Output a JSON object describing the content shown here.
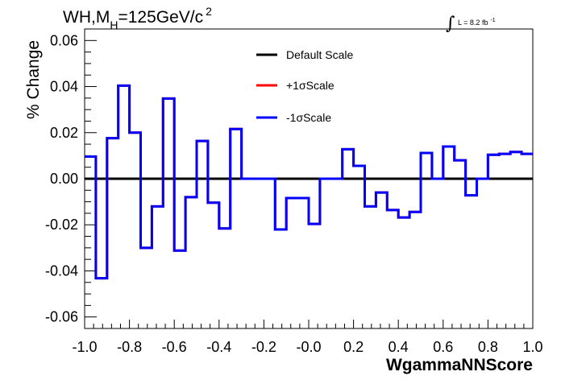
{
  "chart_data": {
    "type": "line",
    "title": {
      "prefix": "WH,M",
      "subscript": "H",
      "value": "=125GeV/c",
      "superscript": "2"
    },
    "luminosity": {
      "integral": "∫",
      "text": "L = 8.2 fb",
      "exponent": "-1"
    },
    "xlabel": "WgammaNNScore",
    "ylabel": "% Change",
    "xlim": [
      -1.0,
      1.0
    ],
    "ylim": [
      -0.065,
      0.065
    ],
    "x_ticks": [
      -1.0,
      -0.8,
      -0.6,
      -0.4,
      -0.2,
      0.0,
      0.2,
      0.4,
      0.6,
      0.8,
      1.0
    ],
    "x_tick_labels": [
      "-1.0",
      "-0.8",
      "-0.6",
      "-0.4",
      "-0.2",
      "-0.0",
      "0.2",
      "0.4",
      "0.6",
      "0.8",
      "1.0"
    ],
    "y_ticks": [
      -0.06,
      -0.04,
      -0.02,
      0.0,
      0.02,
      0.04,
      0.06
    ],
    "y_tick_labels": [
      "-0.06",
      "-0.04",
      "-0.02",
      "0.00",
      "0.02",
      "0.04",
      "0.06"
    ],
    "legend_position": "top-center",
    "grid": false,
    "bin_edges": [
      -1.0,
      -0.95,
      -0.9,
      -0.85,
      -0.8,
      -0.75,
      -0.7,
      -0.65,
      -0.6,
      -0.55,
      -0.5,
      -0.45,
      -0.4,
      -0.35,
      -0.3,
      -0.25,
      -0.2,
      -0.15,
      -0.1,
      -0.05,
      0.0,
      0.05,
      0.1,
      0.15,
      0.2,
      0.25,
      0.3,
      0.35,
      0.4,
      0.45,
      0.5,
      0.55,
      0.6,
      0.65,
      0.7,
      0.75,
      0.8,
      0.85,
      0.9,
      0.95,
      1.0
    ],
    "series": [
      {
        "name": "Default Scale",
        "color": "#000000",
        "values": [
          0,
          0,
          0,
          0,
          0,
          0,
          0,
          0,
          0,
          0,
          0,
          0,
          0,
          0,
          0,
          0,
          0,
          0,
          0,
          0,
          0,
          0,
          0,
          0,
          0,
          0,
          0,
          0,
          0,
          0,
          0,
          0,
          0,
          0,
          0,
          0,
          0,
          0,
          0,
          0
        ]
      },
      {
        "name": "+1σScale",
        "color": "#ff0000",
        "values": [
          0.0096,
          -0.0432,
          0.0176,
          0.0404,
          0.02,
          -0.03,
          -0.012,
          0.0348,
          -0.0312,
          -0.008,
          0.0164,
          -0.0104,
          -0.0216,
          0.0216,
          0.0,
          0.0,
          0.0,
          -0.022,
          -0.0084,
          -0.0084,
          -0.0196,
          0.0,
          0.0,
          0.0128,
          0.0056,
          -0.012,
          -0.006,
          -0.0136,
          -0.0168,
          -0.0144,
          0.0112,
          0.0,
          0.014,
          0.008,
          -0.0072,
          0.0,
          0.0104,
          0.0108,
          0.0116,
          0.0108
        ]
      },
      {
        "name": "-1σScale",
        "color": "#0000ff",
        "values": [
          0.0096,
          -0.0432,
          0.0176,
          0.0404,
          0.02,
          -0.03,
          -0.012,
          0.0348,
          -0.0312,
          -0.008,
          0.0164,
          -0.0104,
          -0.0216,
          0.0216,
          0.0,
          0.0,
          0.0,
          -0.022,
          -0.0084,
          -0.0084,
          -0.0196,
          0.0,
          0.0,
          0.0128,
          0.0056,
          -0.012,
          -0.006,
          -0.0136,
          -0.0168,
          -0.0144,
          0.0112,
          0.0,
          0.014,
          0.008,
          -0.0072,
          0.0,
          0.0104,
          0.0108,
          0.0116,
          0.0108
        ]
      }
    ]
  }
}
